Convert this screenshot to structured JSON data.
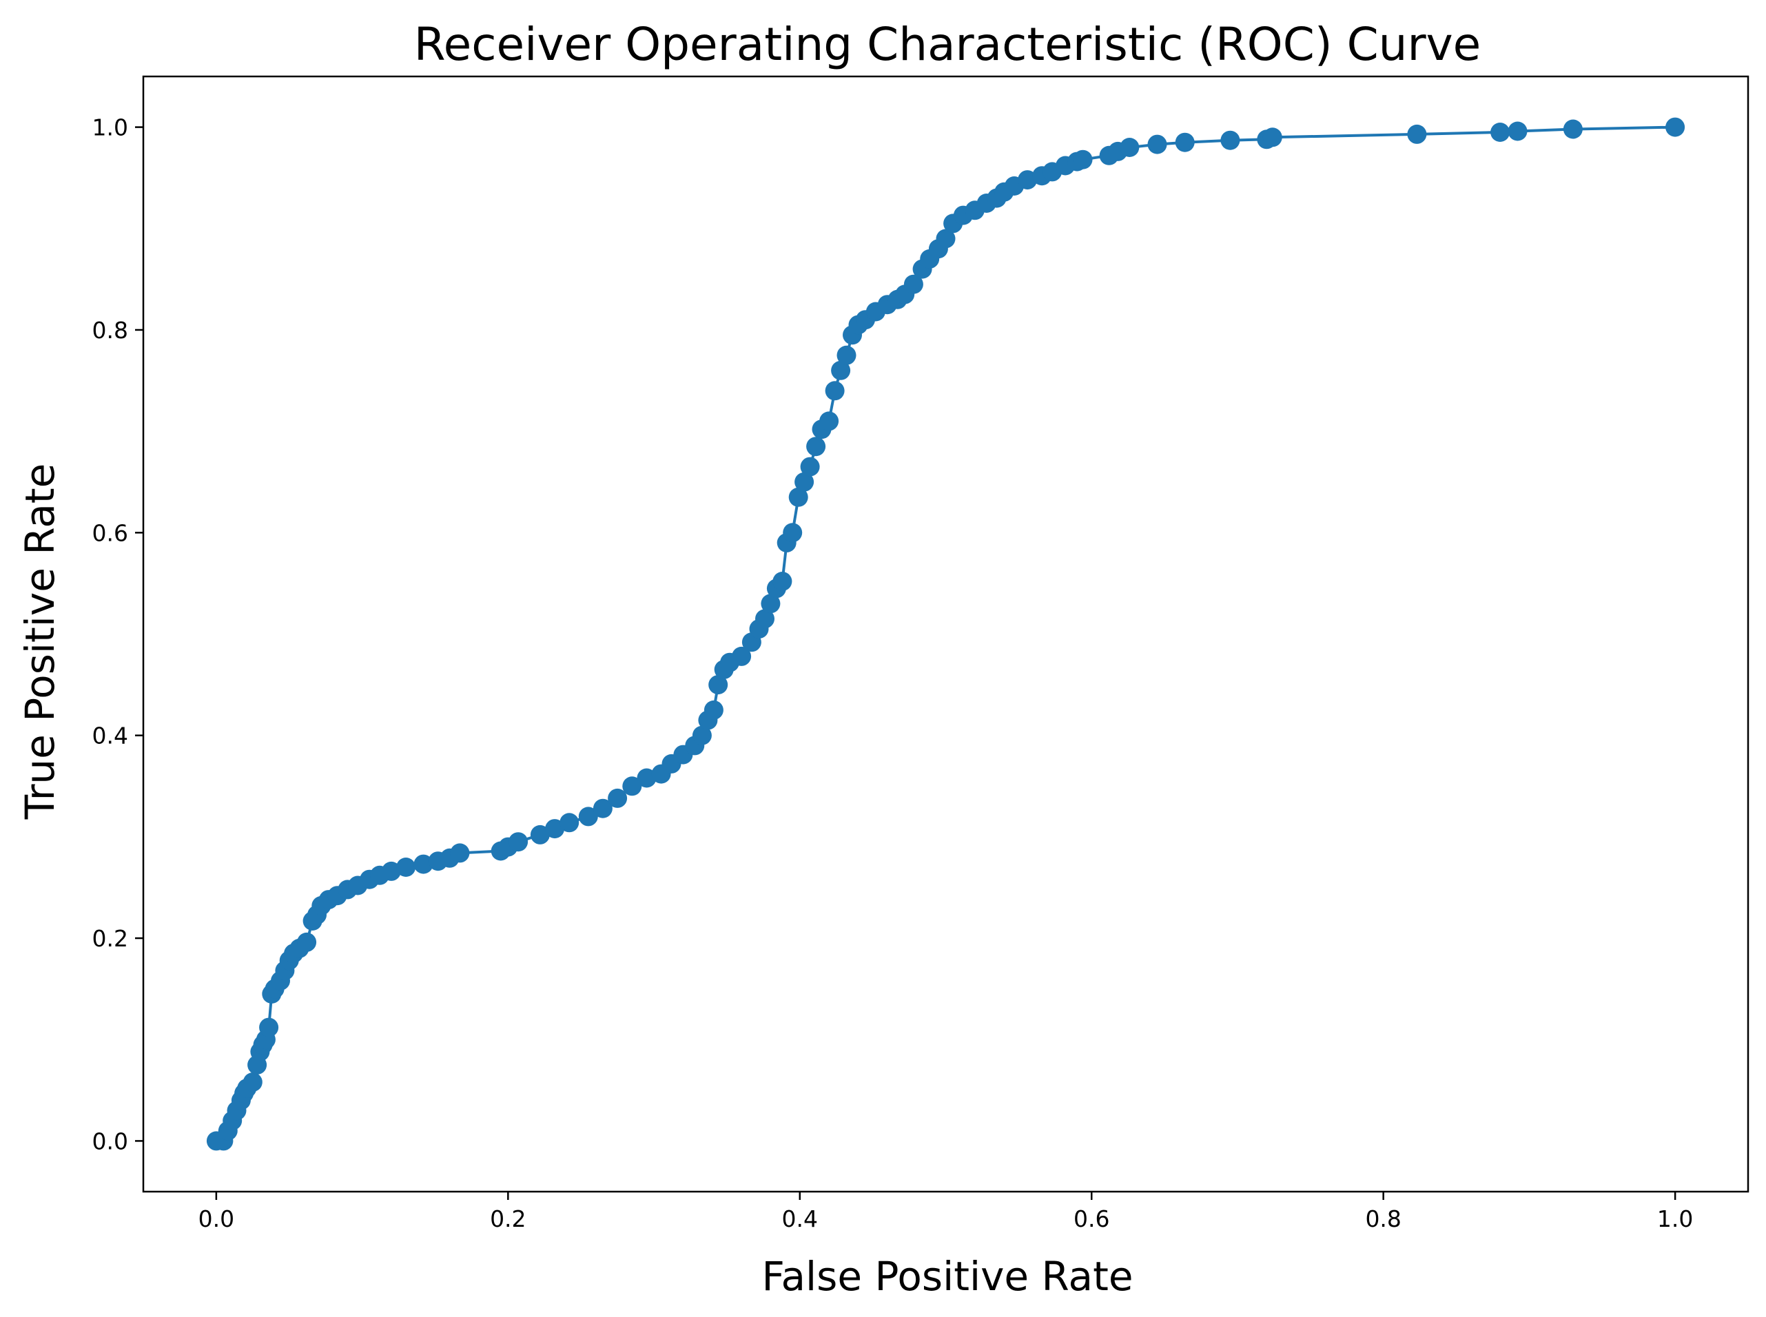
{
  "chart_data": {
    "type": "line",
    "title": "Receiver Operating Characteristic (ROC) Curve",
    "xlabel": "False Positive Rate",
    "ylabel": "True Positive Rate",
    "xlim": [
      -0.05,
      1.05
    ],
    "ylim": [
      -0.05,
      1.05
    ],
    "xticks": [
      {
        "value": 0.0,
        "label": "0.0"
      },
      {
        "value": 0.2,
        "label": "0.2"
      },
      {
        "value": 0.4,
        "label": "0.4"
      },
      {
        "value": 0.6,
        "label": "0.6"
      },
      {
        "value": 0.8,
        "label": "0.8"
      },
      {
        "value": 1.0,
        "label": "1.0"
      }
    ],
    "yticks": [
      {
        "value": 0.0,
        "label": "0.0"
      },
      {
        "value": 0.2,
        "label": "0.2"
      },
      {
        "value": 0.4,
        "label": "0.4"
      },
      {
        "value": 0.6,
        "label": "0.6"
      },
      {
        "value": 0.8,
        "label": "0.8"
      },
      {
        "value": 1.0,
        "label": "1.0"
      }
    ],
    "grid": false,
    "legend": "none",
    "series": [
      {
        "color": "#1f77b4",
        "marker": "circle",
        "x": [
          0.0,
          0.005,
          0.008,
          0.011,
          0.014,
          0.017,
          0.019,
          0.021,
          0.025,
          0.028,
          0.03,
          0.032,
          0.034,
          0.036,
          0.038,
          0.04,
          0.044,
          0.047,
          0.05,
          0.053,
          0.057,
          0.062,
          0.066,
          0.069,
          0.072,
          0.077,
          0.083,
          0.09,
          0.097,
          0.105,
          0.112,
          0.12,
          0.13,
          0.142,
          0.152,
          0.16,
          0.167,
          0.195,
          0.2,
          0.207,
          0.222,
          0.232,
          0.242,
          0.255,
          0.265,
          0.275,
          0.285,
          0.295,
          0.305,
          0.312,
          0.32,
          0.328,
          0.333,
          0.337,
          0.341,
          0.344,
          0.348,
          0.352,
          0.36,
          0.367,
          0.372,
          0.376,
          0.38,
          0.384,
          0.388,
          0.391,
          0.395,
          0.399,
          0.403,
          0.407,
          0.411,
          0.415,
          0.42,
          0.424,
          0.428,
          0.432,
          0.436,
          0.44,
          0.445,
          0.452,
          0.46,
          0.467,
          0.472,
          0.478,
          0.484,
          0.489,
          0.495,
          0.5,
          0.505,
          0.512,
          0.52,
          0.528,
          0.535,
          0.54,
          0.547,
          0.556,
          0.566,
          0.573,
          0.582,
          0.59,
          0.594,
          0.612,
          0.618,
          0.626,
          0.645,
          0.664,
          0.695,
          0.72,
          0.724,
          0.823,
          0.88,
          0.892,
          0.93,
          1.0
        ],
        "y": [
          0.0,
          0.0,
          0.01,
          0.02,
          0.03,
          0.04,
          0.047,
          0.052,
          0.058,
          0.075,
          0.088,
          0.095,
          0.1,
          0.112,
          0.145,
          0.15,
          0.158,
          0.168,
          0.178,
          0.185,
          0.19,
          0.196,
          0.217,
          0.223,
          0.232,
          0.238,
          0.242,
          0.248,
          0.252,
          0.258,
          0.262,
          0.266,
          0.27,
          0.273,
          0.276,
          0.279,
          0.284,
          0.286,
          0.29,
          0.295,
          0.302,
          0.308,
          0.314,
          0.32,
          0.328,
          0.338,
          0.35,
          0.358,
          0.362,
          0.372,
          0.381,
          0.39,
          0.4,
          0.415,
          0.425,
          0.45,
          0.465,
          0.472,
          0.478,
          0.492,
          0.505,
          0.515,
          0.53,
          0.545,
          0.552,
          0.59,
          0.6,
          0.635,
          0.65,
          0.665,
          0.685,
          0.702,
          0.71,
          0.74,
          0.76,
          0.775,
          0.795,
          0.805,
          0.81,
          0.818,
          0.825,
          0.83,
          0.835,
          0.845,
          0.86,
          0.87,
          0.88,
          0.89,
          0.905,
          0.913,
          0.918,
          0.925,
          0.93,
          0.936,
          0.942,
          0.948,
          0.952,
          0.956,
          0.962,
          0.966,
          0.968,
          0.972,
          0.976,
          0.98,
          0.983,
          0.985,
          0.987,
          0.988,
          0.99,
          0.993,
          0.995,
          0.996,
          0.998,
          1.0
        ]
      }
    ]
  }
}
